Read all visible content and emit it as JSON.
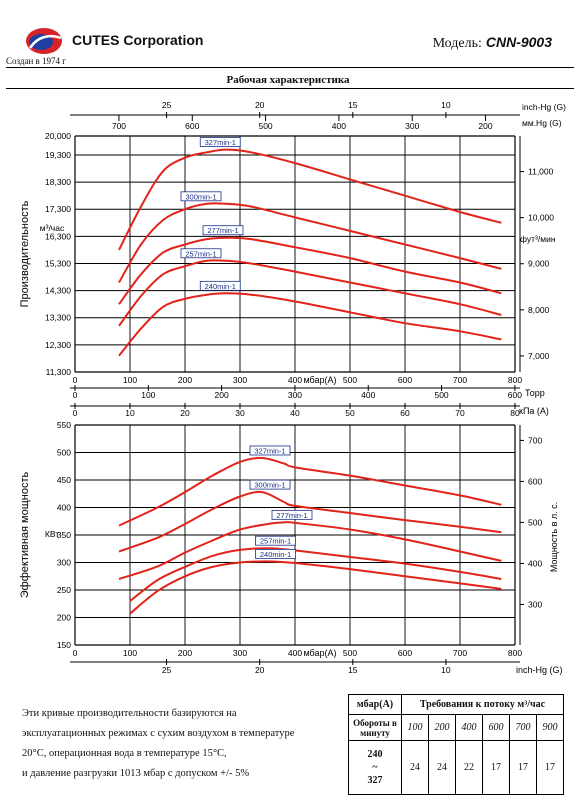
{
  "header": {
    "company": "CUTES Corporation",
    "founded": "Создан в 1974 г",
    "model_label": "Модель:",
    "model_value": "CNN-9003",
    "title": "Рабочая характеристика"
  },
  "colors": {
    "curve": "#e2231a",
    "label_box": "#1a2f8a",
    "grid": "#000000",
    "logo_red": "#d8232a",
    "logo_blue": "#1d3fa0"
  },
  "chart_data": [
    {
      "type": "line",
      "ylabel": "Производительность",
      "yunit": "м³/час",
      "ylim": [
        11300,
        20000
      ],
      "yticks": [
        "11,300",
        "12,300",
        "13,300",
        "14,300",
        "15,300",
        "16,300",
        "17,300",
        "18,300",
        "19,300",
        "20,000"
      ],
      "yticks_values": [
        11300,
        12300,
        13300,
        14300,
        15300,
        16300,
        17300,
        18300,
        19300,
        20000
      ],
      "xlim": [
        0,
        800
      ],
      "xlabel": "мбар(A)",
      "xticks": [
        "0",
        "100",
        "200",
        "300",
        "400",
        "500",
        "600",
        "700",
        "800"
      ],
      "right_axis_label": "фут³/мин",
      "right_ticks": [
        "7,000",
        "8,000",
        "9,000",
        "10,000",
        "11,000"
      ],
      "right_ticks_values": [
        7000,
        8000,
        9000,
        10000,
        11000
      ],
      "top_axis_1_label": "inch-Hg (G)",
      "top_axis_1_ticks": [
        "25",
        "20",
        "15",
        "10"
      ],
      "top_axis_2_label": "мм.Hg (G)",
      "top_axis_2_ticks": [
        "700",
        "600",
        "500",
        "400",
        "300",
        "200"
      ],
      "bottom_axis_2_label": "Торр",
      "bottom_axis_2_ticks": [
        "0",
        "100",
        "200",
        "300",
        "400",
        "500",
        "600"
      ],
      "bottom_axis_3_label": "кПа (A)",
      "bottom_axis_3_ticks": [
        "0",
        "10",
        "20",
        "30",
        "40",
        "50",
        "60",
        "70",
        "80"
      ],
      "series": [
        {
          "name": "327min-1",
          "x": [
            80,
            120,
            160,
            200,
            240,
            275,
            320,
            400,
            500,
            600,
            700,
            775
          ],
          "values": [
            15800,
            17400,
            18700,
            19200,
            19400,
            19500,
            19400,
            19000,
            18400,
            17800,
            17200,
            16800
          ]
        },
        {
          "name": "300min-1",
          "x": [
            80,
            120,
            160,
            200,
            240,
            275,
            320,
            400,
            500,
            600,
            700,
            775
          ],
          "values": [
            14600,
            16000,
            16900,
            17300,
            17500,
            17500,
            17400,
            17000,
            16500,
            16000,
            15500,
            15100
          ]
        },
        {
          "name": "277min-1",
          "x": [
            80,
            120,
            160,
            200,
            240,
            280,
            320,
            400,
            500,
            600,
            700,
            775
          ],
          "values": [
            13800,
            14900,
            15700,
            16000,
            16200,
            16250,
            16200,
            15900,
            15500,
            15000,
            14600,
            14200
          ]
        },
        {
          "name": "257min-1",
          "x": [
            80,
            120,
            160,
            200,
            240,
            275,
            320,
            400,
            500,
            600,
            700,
            775
          ],
          "values": [
            13000,
            14100,
            14900,
            15200,
            15400,
            15400,
            15300,
            15000,
            14600,
            14200,
            13800,
            13400
          ]
        },
        {
          "name": "240min-1",
          "x": [
            80,
            120,
            160,
            200,
            240,
            275,
            320,
            400,
            500,
            600,
            700,
            775
          ],
          "values": [
            11900,
            12900,
            13700,
            14000,
            14150,
            14200,
            14150,
            13900,
            13500,
            13100,
            12800,
            12500
          ]
        }
      ]
    },
    {
      "type": "line",
      "ylabel": "Эффективная мощность",
      "yunit": "КВт",
      "ylim": [
        150,
        550
      ],
      "yticks": [
        "150",
        "200",
        "250",
        "300",
        "350",
        "400",
        "450",
        "500",
        "550"
      ],
      "yticks_values": [
        150,
        200,
        250,
        300,
        350,
        400,
        450,
        500,
        550
      ],
      "xlim": [
        0,
        800
      ],
      "xlabel": "мбар(A)",
      "xticks": [
        "0",
        "100",
        "200",
        "300",
        "400",
        "500",
        "600",
        "700",
        "800"
      ],
      "right_axis_label": "Мощность в л. с.",
      "right_ticks": [
        "300",
        "400",
        "500",
        "600",
        "700"
      ],
      "right_ticks_values": [
        300,
        400,
        500,
        600,
        700
      ],
      "bottom_axis_2_label": "inch-Hg (G)",
      "bottom_axis_2_ticks": [
        "25",
        "20",
        "15",
        "10"
      ],
      "series": [
        {
          "name": "327min-1",
          "x": [
            80,
            150,
            200,
            250,
            300,
            340,
            380,
            400,
            500,
            600,
            700,
            775
          ],
          "values": [
            367,
            400,
            428,
            458,
            483,
            490,
            480,
            473,
            458,
            440,
            422,
            405
          ]
        },
        {
          "name": "300min-1",
          "x": [
            80,
            150,
            200,
            250,
            300,
            340,
            380,
            400,
            500,
            600,
            700,
            775
          ],
          "values": [
            320,
            345,
            370,
            397,
            420,
            428,
            410,
            403,
            390,
            377,
            365,
            355
          ]
        },
        {
          "name": "277min-1",
          "x": [
            80,
            150,
            200,
            250,
            300,
            350,
            380,
            400,
            500,
            600,
            700,
            775
          ],
          "values": [
            270,
            293,
            318,
            340,
            360,
            370,
            373,
            372,
            360,
            342,
            320,
            303
          ]
        },
        {
          "name": "257min-1",
          "x": [
            100,
            150,
            200,
            250,
            300,
            350,
            400,
            500,
            600,
            700,
            775
          ],
          "values": [
            230,
            268,
            292,
            312,
            323,
            326,
            322,
            310,
            298,
            283,
            270
          ]
        },
        {
          "name": "240min-1",
          "x": [
            100,
            150,
            200,
            250,
            300,
            350,
            400,
            500,
            600,
            700,
            775
          ],
          "values": [
            207,
            248,
            275,
            292,
            300,
            302,
            299,
            288,
            275,
            262,
            252
          ]
        }
      ]
    }
  ],
  "note": {
    "lines": [
      "Эти кривые производительности базируются на",
      "эксплуатационных режимах с сухим воздухом в температуре",
      "20°C, операционная вода в температуре 15°C,",
      "и давление разгрузки 1013 мбар с допуском +/- 5%"
    ]
  },
  "table": {
    "corner": "мбар(A)",
    "header": "Требования к потоку м³/час",
    "row_label": "Обороты в минуту",
    "pressures": [
      "100",
      "200",
      "400",
      "600",
      "700",
      "900"
    ],
    "rpm_top": "240",
    "rpm_mid": "~",
    "rpm_bottom": "327",
    "values": [
      "24",
      "24",
      "22",
      "17",
      "17",
      "17"
    ]
  }
}
